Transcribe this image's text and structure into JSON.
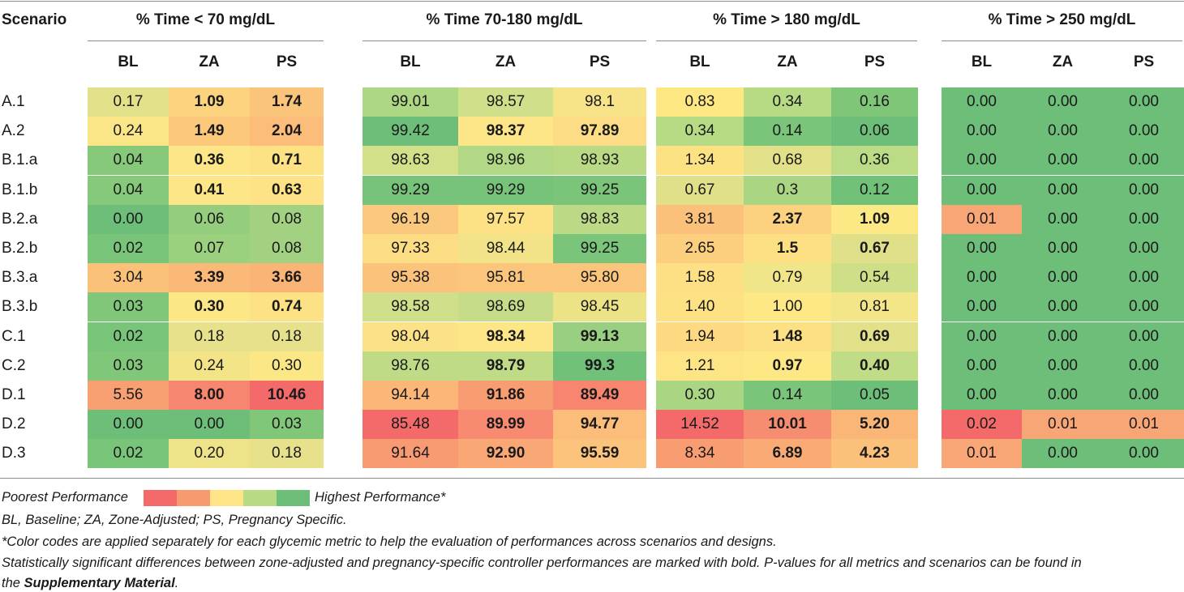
{
  "header": {
    "scenario_label": "Scenario",
    "groups": [
      "% Time < 70 mg/dL",
      "% Time 70-180 mg/dL",
      "% Time > 180 mg/dL",
      "% Time > 250 mg/dL"
    ],
    "sub_labels": [
      "BL",
      "ZA",
      "PS"
    ]
  },
  "palette": [
    "#f46a6a",
    "#f89a70",
    "#fce487",
    "#b9d985",
    "#6cbe78"
  ],
  "rows": [
    {
      "label": "A.1",
      "cells": [
        {
          "v": "0.17",
          "b": false,
          "c": "#e3e08a"
        },
        {
          "v": "1.09",
          "b": true,
          "c": "#fcd37f"
        },
        {
          "v": "1.74",
          "b": true,
          "c": "#fbc47b"
        },
        {
          "v": "99.01",
          "b": false,
          "c": "#aed783"
        },
        {
          "v": "98.57",
          "b": false,
          "c": "#d0df89"
        },
        {
          "v": "98.1",
          "b": false,
          "c": "#f7e488"
        },
        {
          "v": "0.83",
          "b": false,
          "c": "#fde884"
        },
        {
          "v": "0.34",
          "b": false,
          "c": "#b7da85"
        },
        {
          "v": "0.16",
          "b": false,
          "c": "#7fc679"
        },
        {
          "v": "0.00",
          "b": false,
          "c": "#6cbe78"
        },
        {
          "v": "0.00",
          "b": false,
          "c": "#6cbe78"
        },
        {
          "v": "0.00",
          "b": false,
          "c": "#6cbe78"
        }
      ]
    },
    {
      "label": "A.2",
      "cells": [
        {
          "v": "0.24",
          "b": false,
          "c": "#fbe687"
        },
        {
          "v": "1.49",
          "b": true,
          "c": "#fcc87c"
        },
        {
          "v": "2.04",
          "b": true,
          "c": "#fbbd79"
        },
        {
          "v": "99.42",
          "b": false,
          "c": "#6cbe78"
        },
        {
          "v": "98.37",
          "b": true,
          "c": "#fde687"
        },
        {
          "v": "97.89",
          "b": true,
          "c": "#fcdc84"
        },
        {
          "v": "0.34",
          "b": false,
          "c": "#b7da85"
        },
        {
          "v": "0.14",
          "b": false,
          "c": "#7ac579"
        },
        {
          "v": "0.06",
          "b": false,
          "c": "#6cbe78"
        },
        {
          "v": "0.00",
          "b": false,
          "c": "#6cbe78"
        },
        {
          "v": "0.00",
          "b": false,
          "c": "#6cbe78"
        },
        {
          "v": "0.00",
          "b": false,
          "c": "#6cbe78"
        }
      ]
    },
    {
      "label": "B.1.a",
      "cells": [
        {
          "v": "0.04",
          "b": false,
          "c": "#86c97b"
        },
        {
          "v": "0.36",
          "b": true,
          "c": "#fde687"
        },
        {
          "v": "0.71",
          "b": true,
          "c": "#fde185"
        },
        {
          "v": "98.63",
          "b": false,
          "c": "#d3e08a"
        },
        {
          "v": "98.96",
          "b": false,
          "c": "#b3d885"
        },
        {
          "v": "98.93",
          "b": false,
          "c": "#b9d985"
        },
        {
          "v": "1.34",
          "b": false,
          "c": "#fde283"
        },
        {
          "v": "0.68",
          "b": false,
          "c": "#e3e08a"
        },
        {
          "v": "0.36",
          "b": false,
          "c": "#bbdb86"
        },
        {
          "v": "0.00",
          "b": false,
          "c": "#6cbe78"
        },
        {
          "v": "0.00",
          "b": false,
          "c": "#6cbe78"
        },
        {
          "v": "0.00",
          "b": false,
          "c": "#6cbe78"
        }
      ]
    },
    {
      "label": "B.1.b",
      "cells": [
        {
          "v": "0.04",
          "b": false,
          "c": "#86c97b"
        },
        {
          "v": "0.41",
          "b": true,
          "c": "#fde687"
        },
        {
          "v": "0.63",
          "b": true,
          "c": "#fde386"
        },
        {
          "v": "99.29",
          "b": false,
          "c": "#76c379"
        },
        {
          "v": "99.29",
          "b": false,
          "c": "#76c379"
        },
        {
          "v": "99.25",
          "b": false,
          "c": "#7ac579"
        },
        {
          "v": "0.67",
          "b": false,
          "c": "#e1e08a"
        },
        {
          "v": "0.3",
          "b": false,
          "c": "#aad583"
        },
        {
          "v": "0.12",
          "b": false,
          "c": "#72c178"
        },
        {
          "v": "0.00",
          "b": false,
          "c": "#6cbe78"
        },
        {
          "v": "0.00",
          "b": false,
          "c": "#6cbe78"
        },
        {
          "v": "0.00",
          "b": false,
          "c": "#6cbe78"
        }
      ]
    },
    {
      "label": "B.2.a",
      "cells": [
        {
          "v": "0.00",
          "b": false,
          "c": "#6cbe78"
        },
        {
          "v": "0.06",
          "b": false,
          "c": "#94cd7e"
        },
        {
          "v": "0.08",
          "b": false,
          "c": "#a2d281"
        },
        {
          "v": "96.19",
          "b": false,
          "c": "#fbc97d"
        },
        {
          "v": "97.57",
          "b": false,
          "c": "#fde285"
        },
        {
          "v": "98.83",
          "b": false,
          "c": "#bcda86"
        },
        {
          "v": "3.81",
          "b": false,
          "c": "#fbc07a"
        },
        {
          "v": "2.37",
          "b": true,
          "c": "#fcd280"
        },
        {
          "v": "1.09",
          "b": true,
          "c": "#fde886"
        },
        {
          "v": "0.01",
          "b": false,
          "c": "#f8a676"
        },
        {
          "v": "0.00",
          "b": false,
          "c": "#6cbe78"
        },
        {
          "v": "0.00",
          "b": false,
          "c": "#6cbe78"
        }
      ]
    },
    {
      "label": "B.2.b",
      "cells": [
        {
          "v": "0.02",
          "b": false,
          "c": "#78c479"
        },
        {
          "v": "0.07",
          "b": false,
          "c": "#9bd07f"
        },
        {
          "v": "0.08",
          "b": false,
          "c": "#a2d281"
        },
        {
          "v": "97.33",
          "b": false,
          "c": "#fcdd84"
        },
        {
          "v": "98.44",
          "b": false,
          "c": "#f2e388"
        },
        {
          "v": "99.25",
          "b": false,
          "c": "#7ac579"
        },
        {
          "v": "2.65",
          "b": false,
          "c": "#fccf7f"
        },
        {
          "v": "1.5",
          "b": true,
          "c": "#fde083"
        },
        {
          "v": "0.67",
          "b": true,
          "c": "#e1e08a"
        },
        {
          "v": "0.00",
          "b": false,
          "c": "#6cbe78"
        },
        {
          "v": "0.00",
          "b": false,
          "c": "#6cbe78"
        },
        {
          "v": "0.00",
          "b": false,
          "c": "#6cbe78"
        }
      ]
    },
    {
      "label": "B.3.a",
      "cells": [
        {
          "v": "3.04",
          "b": false,
          "c": "#fbc179"
        },
        {
          "v": "3.39",
          "b": true,
          "c": "#fbb977"
        },
        {
          "v": "3.66",
          "b": true,
          "c": "#fab476"
        },
        {
          "v": "95.38",
          "b": false,
          "c": "#fbc27b"
        },
        {
          "v": "95.81",
          "b": false,
          "c": "#fbc57c"
        },
        {
          "v": "95.80",
          "b": false,
          "c": "#fbc57c"
        },
        {
          "v": "1.58",
          "b": false,
          "c": "#fde083"
        },
        {
          "v": "0.79",
          "b": false,
          "c": "#f0e588"
        },
        {
          "v": "0.54",
          "b": false,
          "c": "#cfdf88"
        },
        {
          "v": "0.00",
          "b": false,
          "c": "#6cbe78"
        },
        {
          "v": "0.00",
          "b": false,
          "c": "#6cbe78"
        },
        {
          "v": "0.00",
          "b": false,
          "c": "#6cbe78"
        }
      ]
    },
    {
      "label": "B.3.b",
      "cells": [
        {
          "v": "0.03",
          "b": false,
          "c": "#80c77a"
        },
        {
          "v": "0.30",
          "b": true,
          "c": "#fce787"
        },
        {
          "v": "0.74",
          "b": true,
          "c": "#fde185"
        },
        {
          "v": "98.58",
          "b": false,
          "c": "#d0df89"
        },
        {
          "v": "98.69",
          "b": false,
          "c": "#c6dc88"
        },
        {
          "v": "98.45",
          "b": false,
          "c": "#ece286"
        },
        {
          "v": "1.40",
          "b": false,
          "c": "#fde283"
        },
        {
          "v": "1.00",
          "b": false,
          "c": "#fde885"
        },
        {
          "v": "0.81",
          "b": false,
          "c": "#f3e688"
        },
        {
          "v": "0.00",
          "b": false,
          "c": "#6cbe78"
        },
        {
          "v": "0.00",
          "b": false,
          "c": "#6cbe78"
        },
        {
          "v": "0.00",
          "b": false,
          "c": "#6cbe78"
        }
      ]
    },
    {
      "label": "C.1",
      "cells": [
        {
          "v": "0.02",
          "b": false,
          "c": "#78c479"
        },
        {
          "v": "0.18",
          "b": false,
          "c": "#e6e18a"
        },
        {
          "v": "0.18",
          "b": false,
          "c": "#e6e18a"
        },
        {
          "v": "98.04",
          "b": false,
          "c": "#fce286"
        },
        {
          "v": "98.34",
          "b": true,
          "c": "#fde687"
        },
        {
          "v": "99.13",
          "b": true,
          "c": "#98cf80"
        },
        {
          "v": "1.94",
          "b": false,
          "c": "#fdda81"
        },
        {
          "v": "1.48",
          "b": true,
          "c": "#fde083"
        },
        {
          "v": "0.69",
          "b": true,
          "c": "#e3e08a"
        },
        {
          "v": "0.00",
          "b": false,
          "c": "#6cbe78"
        },
        {
          "v": "0.00",
          "b": false,
          "c": "#6cbe78"
        },
        {
          "v": "0.00",
          "b": false,
          "c": "#6cbe78"
        }
      ]
    },
    {
      "label": "C.2",
      "cells": [
        {
          "v": "0.03",
          "b": false,
          "c": "#80c77a"
        },
        {
          "v": "0.24",
          "b": false,
          "c": "#f3e488"
        },
        {
          "v": "0.30",
          "b": false,
          "c": "#fce787"
        },
        {
          "v": "98.76",
          "b": false,
          "c": "#bfdb86"
        },
        {
          "v": "98.79",
          "b": true,
          "c": "#c0db86"
        },
        {
          "v": "99.3",
          "b": true,
          "c": "#72c178"
        },
        {
          "v": "1.21",
          "b": false,
          "c": "#fde484"
        },
        {
          "v": "0.97",
          "b": true,
          "c": "#fde885"
        },
        {
          "v": "0.40",
          "b": true,
          "c": "#c0dc86"
        },
        {
          "v": "0.00",
          "b": false,
          "c": "#6cbe78"
        },
        {
          "v": "0.00",
          "b": false,
          "c": "#6cbe78"
        },
        {
          "v": "0.00",
          "b": false,
          "c": "#6cbe78"
        }
      ]
    },
    {
      "label": "D.1",
      "cells": [
        {
          "v": "5.56",
          "b": false,
          "c": "#f8a072"
        },
        {
          "v": "8.00",
          "b": true,
          "c": "#f6866f"
        },
        {
          "v": "10.46",
          "b": true,
          "c": "#f46a6a"
        },
        {
          "v": "94.14",
          "b": false,
          "c": "#fbb678"
        },
        {
          "v": "91.86",
          "b": true,
          "c": "#f89c72"
        },
        {
          "v": "89.49",
          "b": true,
          "c": "#f7856f"
        },
        {
          "v": "0.30",
          "b": false,
          "c": "#aad583"
        },
        {
          "v": "0.14",
          "b": false,
          "c": "#7ac579"
        },
        {
          "v": "0.05",
          "b": false,
          "c": "#6cbe78"
        },
        {
          "v": "0.00",
          "b": false,
          "c": "#6cbe78"
        },
        {
          "v": "0.00",
          "b": false,
          "c": "#6cbe78"
        },
        {
          "v": "0.00",
          "b": false,
          "c": "#6cbe78"
        }
      ]
    },
    {
      "label": "D.2",
      "cells": [
        {
          "v": "0.00",
          "b": false,
          "c": "#6cbe78"
        },
        {
          "v": "0.00",
          "b": false,
          "c": "#6cbe78"
        },
        {
          "v": "0.03",
          "b": false,
          "c": "#80c77a"
        },
        {
          "v": "85.48",
          "b": false,
          "c": "#f46a6a"
        },
        {
          "v": "89.99",
          "b": true,
          "c": "#f78a70"
        },
        {
          "v": "94.77",
          "b": true,
          "c": "#fbbd79"
        },
        {
          "v": "14.52",
          "b": false,
          "c": "#f46a6a"
        },
        {
          "v": "10.01",
          "b": true,
          "c": "#f78d70"
        },
        {
          "v": "5.20",
          "b": true,
          "c": "#fab677"
        },
        {
          "v": "0.02",
          "b": false,
          "c": "#f46a6a"
        },
        {
          "v": "0.01",
          "b": false,
          "c": "#f8a676"
        },
        {
          "v": "0.01",
          "b": false,
          "c": "#f8a676"
        }
      ]
    },
    {
      "label": "D.3",
      "cells": [
        {
          "v": "0.02",
          "b": false,
          "c": "#78c479"
        },
        {
          "v": "0.20",
          "b": false,
          "c": "#eee389"
        },
        {
          "v": "0.18",
          "b": false,
          "c": "#e6e18a"
        },
        {
          "v": "91.64",
          "b": false,
          "c": "#f89a72"
        },
        {
          "v": "92.90",
          "b": true,
          "c": "#f9a774"
        },
        {
          "v": "95.59",
          "b": true,
          "c": "#fbc37b"
        },
        {
          "v": "8.34",
          "b": false,
          "c": "#f89c72"
        },
        {
          "v": "6.89",
          "b": true,
          "c": "#f9aa75"
        },
        {
          "v": "4.23",
          "b": true,
          "c": "#fbc07a"
        },
        {
          "v": "0.01",
          "b": false,
          "c": "#f8a676"
        },
        {
          "v": "0.00",
          "b": false,
          "c": "#6cbe78"
        },
        {
          "v": "0.00",
          "b": false,
          "c": "#6cbe78"
        }
      ]
    }
  ],
  "footnotes": {
    "legend_left": "Poorest Performance",
    "legend_right": "Highest Performance*",
    "abbrev": "BL, Baseline; ZA, Zone-Adjusted; PS, Pregnancy Specific.",
    "color_note": "*Color codes are applied separately for each glycemic metric to help the evaluation of performances across scenarios and designs.",
    "sig_note_1": "Statistically significant differences between zone-adjusted and pregnancy-specific controller performances are marked with bold. P-values for all metrics and scenarios can be found in",
    "sig_note_2_prefix": "the ",
    "sig_note_2_bold": "Supplementary Material",
    "sig_note_2_suffix": "."
  }
}
